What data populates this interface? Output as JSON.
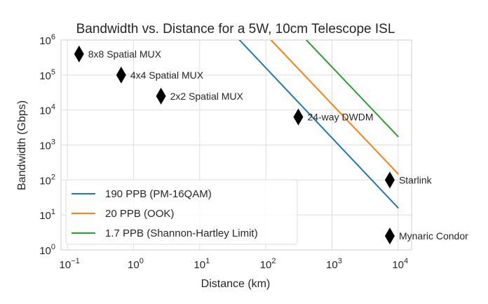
{
  "chart_data": {
    "type": "line",
    "title": "Bandwidth vs. Distance for a 5W, 10cm Telescope ISL",
    "xlabel": "Distance (km)",
    "ylabel": "Bandwidth (Gbps)",
    "xscale": "log",
    "yscale": "log",
    "xlim": [
      0.08,
      16000
    ],
    "ylim": [
      1,
      1000000
    ],
    "grid": true,
    "legend_position": "lower-left",
    "x_ticks": [
      {
        "value": 0.1,
        "base": "10",
        "exp": "−1"
      },
      {
        "value": 1,
        "base": "10",
        "exp": "0"
      },
      {
        "value": 10,
        "base": "10",
        "exp": "1"
      },
      {
        "value": 100,
        "base": "10",
        "exp": "2"
      },
      {
        "value": 1000,
        "base": "10",
        "exp": "3"
      },
      {
        "value": 10000,
        "base": "10",
        "exp": "4"
      }
    ],
    "y_ticks": [
      {
        "value": 1,
        "base": "10",
        "exp": "0"
      },
      {
        "value": 10,
        "base": "10",
        "exp": "1"
      },
      {
        "value": 100,
        "base": "10",
        "exp": "2"
      },
      {
        "value": 1000,
        "base": "10",
        "exp": "3"
      },
      {
        "value": 10000,
        "base": "10",
        "exp": "4"
      },
      {
        "value": 100000,
        "base": "10",
        "exp": "5"
      },
      {
        "value": 1000000,
        "base": "10",
        "exp": "6"
      }
    ],
    "series": [
      {
        "name": "190 PPB (PM-16QAM)",
        "color": "#1f77b4",
        "x": [
          40,
          10000
        ],
        "y": [
          1000000,
          16
        ]
      },
      {
        "name": "20 PPB (OOK)",
        "color": "#ff7f0e",
        "x": [
          120,
          10000
        ],
        "y": [
          1000000,
          150
        ]
      },
      {
        "name": "1.7 PPB (Shannon-Hartley Limit)",
        "color": "#2ca02c",
        "x": [
          410,
          10000
        ],
        "y": [
          1000000,
          1750
        ]
      }
    ],
    "points": [
      {
        "label": "8x8 Spatial MUX",
        "x": 0.15,
        "y": 400000
      },
      {
        "label": "4x4 Spatial MUX",
        "x": 0.65,
        "y": 100000
      },
      {
        "label": "2x2 Spatial MUX",
        "x": 2.6,
        "y": 25000
      },
      {
        "label": "24-way DWDM",
        "x": 310,
        "y": 6300
      },
      {
        "label": "Starlink",
        "x": 7500,
        "y": 100
      },
      {
        "label": "Mynaric Condor",
        "x": 7500,
        "y": 2.5
      }
    ]
  }
}
